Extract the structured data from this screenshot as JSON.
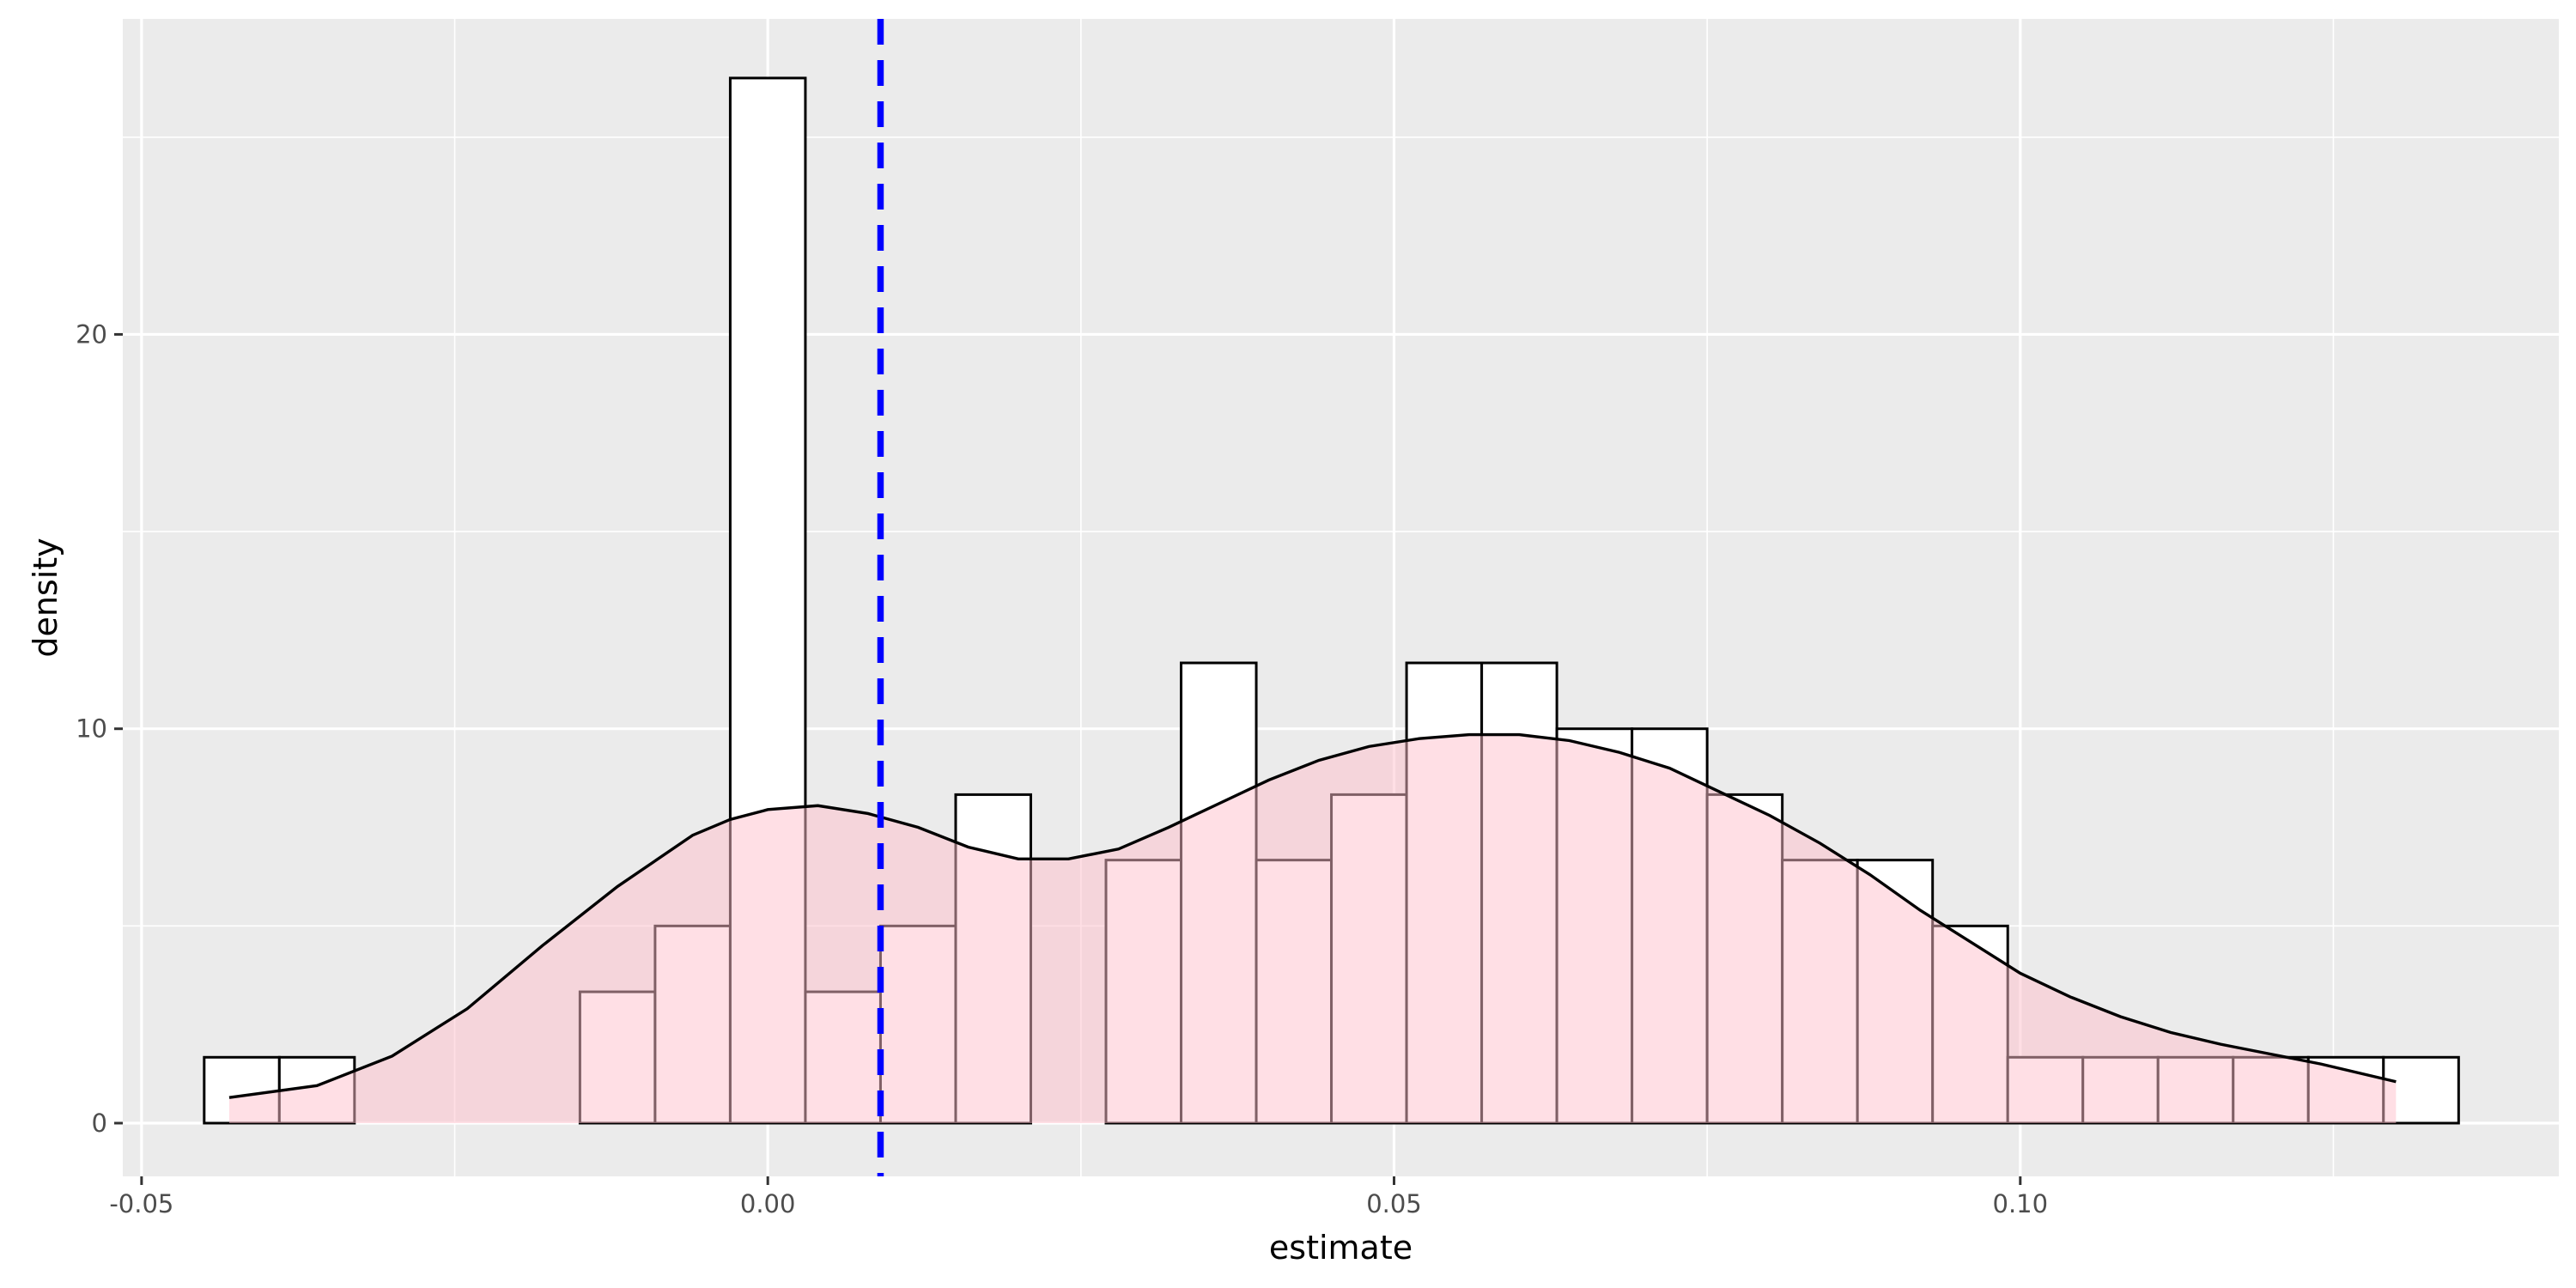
{
  "chart_data": {
    "type": "bar",
    "subtype": "histogram-with-density",
    "title": "",
    "xlabel": "estimate",
    "ylabel": "density",
    "xlim": [
      -0.0515,
      0.143
    ],
    "ylim": [
      -1.35,
      28
    ],
    "x_ticks": [
      -0.05,
      0.0,
      0.05,
      0.1
    ],
    "x_tick_labels": [
      "-0.05",
      "0.00",
      "0.05",
      "0.10"
    ],
    "y_ticks": [
      0,
      10,
      20
    ],
    "y_tick_labels": [
      "0",
      "10",
      "20"
    ],
    "grid": true,
    "legend": "none",
    "bin_width": 0.006,
    "bins": [
      {
        "x0": -0.045,
        "x1": -0.039,
        "density": 1.67
      },
      {
        "x0": -0.039,
        "x1": -0.033,
        "density": 1.67
      },
      {
        "x0": -0.033,
        "x1": -0.027,
        "density": 0
      },
      {
        "x0": -0.027,
        "x1": -0.021,
        "density": 0
      },
      {
        "x0": -0.021,
        "x1": -0.015,
        "density": 0
      },
      {
        "x0": -0.015,
        "x1": -0.009,
        "density": 3.33
      },
      {
        "x0": -0.009,
        "x1": -0.003,
        "density": 5.0
      },
      {
        "x0": -0.003,
        "x1": 0.003,
        "density": 26.5
      },
      {
        "x0": 0.003,
        "x1": 0.009,
        "density": 3.33
      },
      {
        "x0": 0.009,
        "x1": 0.015,
        "density": 5.0
      },
      {
        "x0": 0.015,
        "x1": 0.021,
        "density": 8.33
      },
      {
        "x0": 0.021,
        "x1": 0.027,
        "density": 0
      },
      {
        "x0": 0.027,
        "x1": 0.033,
        "density": 6.67
      },
      {
        "x0": 0.033,
        "x1": 0.039,
        "density": 11.67
      },
      {
        "x0": 0.039,
        "x1": 0.045,
        "density": 6.67
      },
      {
        "x0": 0.045,
        "x1": 0.051,
        "density": 8.33
      },
      {
        "x0": 0.051,
        "x1": 0.057,
        "density": 11.67
      },
      {
        "x0": 0.057,
        "x1": 0.063,
        "density": 11.67
      },
      {
        "x0": 0.063,
        "x1": 0.069,
        "density": 10.0
      },
      {
        "x0": 0.069,
        "x1": 0.075,
        "density": 10.0
      },
      {
        "x0": 0.075,
        "x1": 0.081,
        "density": 8.33
      },
      {
        "x0": 0.081,
        "x1": 0.087,
        "density": 6.67
      },
      {
        "x0": 0.087,
        "x1": 0.093,
        "density": 6.67
      },
      {
        "x0": 0.093,
        "x1": 0.099,
        "density": 5.0
      },
      {
        "x0": 0.099,
        "x1": 0.105,
        "density": 1.67
      },
      {
        "x0": 0.105,
        "x1": 0.111,
        "density": 1.67
      },
      {
        "x0": 0.111,
        "x1": 0.117,
        "density": 1.67
      },
      {
        "x0": 0.117,
        "x1": 0.123,
        "density": 1.67
      },
      {
        "x0": 0.123,
        "x1": 0.129,
        "density": 1.67
      },
      {
        "x0": 0.129,
        "x1": 0.135,
        "density": 1.67
      }
    ],
    "density_curve": {
      "x": [
        -0.043,
        -0.036,
        -0.03,
        -0.024,
        -0.018,
        -0.012,
        -0.006,
        -0.003,
        0.0,
        0.004,
        0.008,
        0.012,
        0.016,
        0.02,
        0.024,
        0.028,
        0.032,
        0.036,
        0.04,
        0.044,
        0.048,
        0.052,
        0.056,
        0.06,
        0.064,
        0.068,
        0.072,
        0.076,
        0.08,
        0.084,
        0.088,
        0.092,
        0.096,
        0.1,
        0.104,
        0.108,
        0.112,
        0.116,
        0.12,
        0.124,
        0.13
      ],
      "y": [
        0.65,
        0.95,
        1.7,
        2.9,
        4.5,
        6.0,
        7.3,
        7.7,
        7.95,
        8.05,
        7.85,
        7.5,
        7.0,
        6.7,
        6.7,
        6.95,
        7.5,
        8.1,
        8.7,
        9.2,
        9.55,
        9.75,
        9.85,
        9.85,
        9.7,
        9.4,
        9.0,
        8.4,
        7.8,
        7.1,
        6.3,
        5.4,
        4.6,
        3.8,
        3.2,
        2.7,
        2.3,
        2.0,
        1.75,
        1.5,
        1.05
      ]
    },
    "reference_line": {
      "x": 0.009,
      "style": "dashed"
    },
    "colors": {
      "panel_background": "#ebebeb",
      "grid": "#ffffff",
      "bar_fill": "#ffffff",
      "bar_stroke": "#000000",
      "density_fill": "#ffc0cb",
      "density_fill_opacity": 0.5,
      "density_line": "#000000",
      "reference_line": "#0000ff",
      "tick_text": "#4d4d4d",
      "tick_mark": "#333333",
      "axis_title": "#000000"
    }
  }
}
